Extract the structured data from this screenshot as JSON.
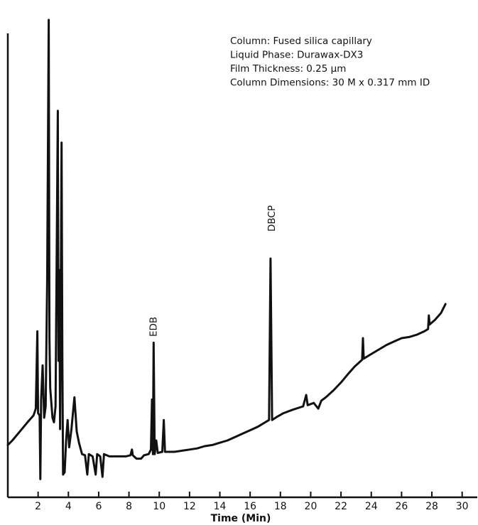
{
  "chart_data": {
    "type": "line",
    "title": "",
    "xlabel": "Time (Min)",
    "ylabel": "",
    "xlim": [
      0,
      31
    ],
    "xticks": [
      2,
      4,
      6,
      8,
      10,
      12,
      14,
      16,
      18,
      20,
      22,
      24,
      26,
      28,
      30
    ],
    "grid": false,
    "annotation_lines": [
      "Column: Fused silica capillary",
      "Liquid Phase: Durawax-DX3",
      "Film Thickness: 0.25 μm",
      "Column Dimensions: 30 M x 0.317 mm ID"
    ],
    "peak_labels": [
      {
        "label": "EDB",
        "x": 9.6
      },
      {
        "label": "DBCP",
        "x": 17.4
      }
    ],
    "series": [
      {
        "values": [
          [
            0.0,
            2.3
          ],
          [
            0.3,
            2.5
          ],
          [
            0.8,
            2.9
          ],
          [
            1.3,
            3.3
          ],
          [
            1.7,
            3.6
          ],
          [
            1.85,
            3.9
          ],
          [
            1.95,
            7.3
          ],
          [
            2.0,
            3.7
          ],
          [
            2.1,
            3.6
          ],
          [
            2.15,
            0.8
          ],
          [
            2.2,
            4.3
          ],
          [
            2.3,
            5.8
          ],
          [
            2.4,
            3.5
          ],
          [
            2.5,
            4.0
          ],
          [
            2.6,
            9.5
          ],
          [
            2.7,
            21.0
          ],
          [
            2.75,
            7.0
          ],
          [
            2.8,
            4.8
          ],
          [
            2.95,
            3.5
          ],
          [
            3.05,
            3.3
          ],
          [
            3.15,
            4.0
          ],
          [
            3.3,
            17.0
          ],
          [
            3.35,
            6.0
          ],
          [
            3.4,
            10.0
          ],
          [
            3.45,
            3.0
          ],
          [
            3.55,
            15.6
          ],
          [
            3.6,
            6.0
          ],
          [
            3.65,
            1.0
          ],
          [
            3.75,
            1.1
          ],
          [
            3.85,
            2.5
          ],
          [
            3.95,
            3.4
          ],
          [
            4.05,
            2.2
          ],
          [
            4.2,
            3.0
          ],
          [
            4.4,
            4.4
          ],
          [
            4.55,
            2.9
          ],
          [
            4.7,
            2.4
          ],
          [
            4.9,
            1.9
          ],
          [
            5.1,
            1.85
          ],
          [
            5.25,
            1.0
          ],
          [
            5.35,
            1.9
          ],
          [
            5.6,
            1.8
          ],
          [
            5.8,
            1.0
          ],
          [
            5.9,
            1.9
          ],
          [
            6.1,
            1.8
          ],
          [
            6.25,
            0.9
          ],
          [
            6.35,
            1.9
          ],
          [
            6.7,
            1.8
          ],
          [
            7.2,
            1.8
          ],
          [
            7.8,
            1.8
          ],
          [
            8.1,
            1.85
          ],
          [
            8.2,
            2.1
          ],
          [
            8.25,
            1.85
          ],
          [
            8.5,
            1.7
          ],
          [
            8.8,
            1.7
          ],
          [
            9.0,
            1.85
          ],
          [
            9.3,
            1.9
          ],
          [
            9.45,
            2.1
          ],
          [
            9.52,
            4.3
          ],
          [
            9.58,
            1.9
          ],
          [
            9.63,
            6.8
          ],
          [
            9.7,
            1.9
          ],
          [
            9.8,
            2.5
          ],
          [
            9.9,
            1.95
          ],
          [
            10.2,
            2.0
          ],
          [
            10.3,
            3.4
          ],
          [
            10.38,
            2.0
          ],
          [
            11.0,
            2.0
          ],
          [
            11.5,
            2.05
          ],
          [
            12.0,
            2.1
          ],
          [
            12.5,
            2.15
          ],
          [
            13.0,
            2.25
          ],
          [
            13.5,
            2.3
          ],
          [
            14.0,
            2.4
          ],
          [
            14.5,
            2.5
          ],
          [
            15.0,
            2.65
          ],
          [
            15.5,
            2.8
          ],
          [
            16.0,
            2.95
          ],
          [
            16.5,
            3.1
          ],
          [
            17.0,
            3.3
          ],
          [
            17.25,
            3.4
          ],
          [
            17.35,
            10.5
          ],
          [
            17.45,
            3.4
          ],
          [
            17.8,
            3.55
          ],
          [
            18.2,
            3.7
          ],
          [
            18.8,
            3.85
          ],
          [
            19.5,
            4.0
          ],
          [
            19.7,
            4.5
          ],
          [
            19.8,
            4.05
          ],
          [
            20.2,
            4.15
          ],
          [
            20.5,
            3.9
          ],
          [
            20.7,
            4.25
          ],
          [
            21.0,
            4.4
          ],
          [
            21.5,
            4.7
          ],
          [
            22.0,
            5.05
          ],
          [
            22.5,
            5.45
          ],
          [
            22.9,
            5.75
          ],
          [
            23.4,
            6.05
          ],
          [
            23.45,
            7.0
          ],
          [
            23.5,
            6.1
          ],
          [
            24.0,
            6.3
          ],
          [
            24.5,
            6.5
          ],
          [
            25.0,
            6.7
          ],
          [
            25.5,
            6.85
          ],
          [
            26.0,
            7.0
          ],
          [
            26.5,
            7.05
          ],
          [
            27.0,
            7.15
          ],
          [
            27.5,
            7.3
          ],
          [
            27.75,
            7.4
          ],
          [
            27.8,
            8.0
          ],
          [
            27.85,
            7.6
          ],
          [
            28.2,
            7.8
          ],
          [
            28.6,
            8.1
          ],
          [
            28.9,
            8.5
          ]
        ]
      }
    ]
  }
}
